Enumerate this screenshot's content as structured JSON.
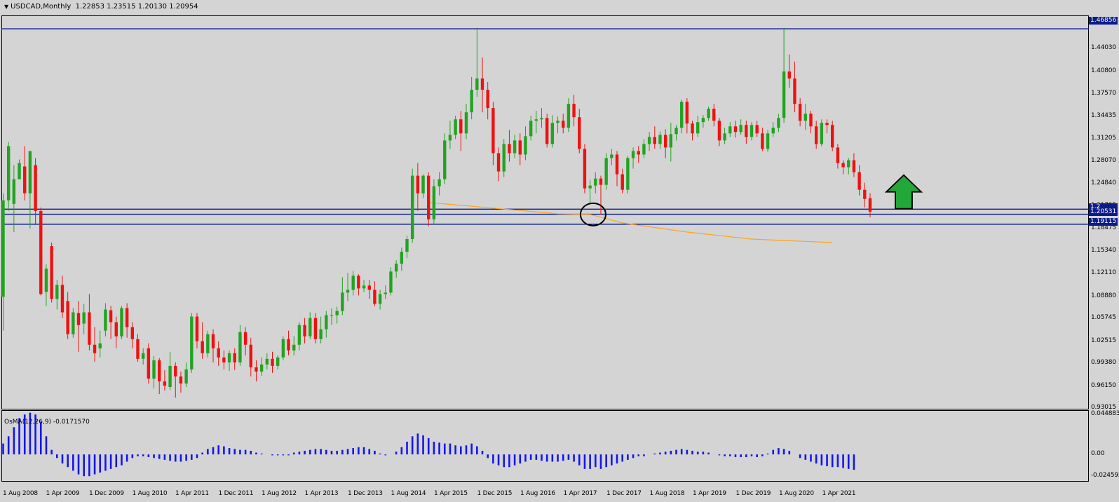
{
  "chart_title": {
    "symbol": "USDCAD,Monthly",
    "ohlc": "1.22853 1.23515 1.20130 1.20954",
    "dropdown_icon": "triangle-down-icon"
  },
  "indicator": {
    "name": "OsMA(12,26,9) -0.0171570"
  },
  "tags": {
    "top": "1.46856",
    "current": "1.20531",
    "support": "1.19115",
    "hidden_prefix": "1.2"
  },
  "colors": {
    "background": "#d4d4d4",
    "bull": "#22a322",
    "bear": "#ee1111",
    "levels": "#0c1b8a",
    "ma": "#f5a623",
    "osma": "#1515f0",
    "arrow": "#22a838"
  },
  "chart_data": {
    "type": "candlestick",
    "instrument": "USDCAD",
    "timeframe": "Monthly",
    "x_ticks": [
      "1 Aug 2008",
      "1 Apr 2009",
      "1 Dec 2009",
      "1 Aug 2010",
      "1 Apr 2011",
      "1 Dec 2011",
      "1 Aug 2012",
      "1 Apr 2013",
      "1 Dec 2013",
      "1 Aug 2014",
      "1 Apr 2015",
      "1 Dec 2015",
      "1 Aug 2016",
      "1 Apr 2017",
      "1 Dec 2017",
      "1 Aug 2018",
      "1 Apr 2019",
      "1 Dec 2019",
      "1 Aug 2020",
      "1 Apr 2021"
    ],
    "y_ticks": [
      "1.44030",
      "1.40800",
      "1.37570",
      "1.34435",
      "1.31205",
      "1.28070",
      "1.24840",
      "1.21705",
      "1.18475",
      "1.15340",
      "1.12110",
      "1.08880",
      "1.05745",
      "1.02515",
      "0.99380",
      "0.96150",
      "0.93015"
    ],
    "y_range": [
      0.93015,
      1.4875
    ],
    "osma_ticks": [
      "0.044883",
      "0.00",
      "-0.024592"
    ],
    "osma_range": [
      -0.0285,
      0.0488
    ],
    "levels": [
      1.46856,
      1.2125,
      1.20531,
      1.19115
    ],
    "annotations": [
      "circle at 1 Jun 2017 low near 1.205",
      "green up arrow near 1.23"
    ],
    "ma_points": [
      [
        2015,
        1.222
      ],
      [
        2016,
        1.214
      ],
      [
        2017,
        1.206
      ],
      [
        2017.5,
        1.205
      ],
      [
        2018,
        1.193
      ],
      [
        2019,
        1.18
      ],
      [
        2020,
        1.17
      ],
      [
        2021.25,
        1.165
      ]
    ],
    "candles": [
      [
        1.088,
        1.225,
        1.04,
        1.235
      ],
      [
        1.225,
        1.302,
        1.21,
        1.308
      ],
      [
        1.22,
        1.255,
        1.18,
        1.275
      ],
      [
        1.255,
        1.278,
        1.255,
        1.283
      ],
      [
        1.273,
        1.235,
        1.225,
        1.302
      ],
      [
        1.235,
        1.295,
        1.185,
        1.29
      ],
      [
        1.275,
        1.21,
        1.19,
        1.285
      ],
      [
        1.21,
        1.092,
        1.09,
        1.215
      ],
      [
        1.095,
        1.128,
        1.075,
        1.134
      ],
      [
        1.16,
        1.085,
        1.08,
        1.165
      ],
      [
        1.085,
        1.105,
        1.07,
        1.112
      ],
      [
        1.105,
        1.066,
        1.058,
        1.118
      ],
      [
        1.082,
        1.035,
        1.028,
        1.095
      ],
      [
        1.035,
        1.066,
        1.03,
        1.072
      ],
      [
        1.065,
        1.048,
        1.01,
        1.082
      ],
      [
        1.05,
        1.066,
        1.035,
        1.078
      ],
      [
        1.066,
        1.02,
        1.012,
        1.092
      ],
      [
        1.02,
        1.008,
        0.996,
        1.045
      ],
      [
        1.015,
        1.022,
        1.002,
        1.04
      ],
      [
        1.04,
        1.07,
        1.032,
        1.079
      ],
      [
        1.069,
        1.052,
        1.028,
        1.075
      ],
      [
        1.052,
        1.032,
        1.015,
        1.06
      ],
      [
        1.032,
        1.072,
        1.028,
        1.075
      ],
      [
        1.072,
        1.045,
        1.03,
        1.079
      ],
      [
        1.045,
        1.028,
        1.015,
        1.052
      ],
      [
        1.028,
        1.0,
        0.996,
        1.035
      ],
      [
        1.0,
        1.008,
        0.992,
        1.015
      ],
      [
        1.015,
        0.972,
        0.965,
        1.022
      ],
      [
        0.972,
        0.998,
        0.958,
        1.004
      ],
      [
        0.998,
        0.968,
        0.95,
        1.001
      ],
      [
        0.968,
        0.962,
        0.955,
        0.984
      ],
      [
        0.96,
        0.99,
        0.956,
        1.01
      ],
      [
        0.99,
        0.975,
        0.945,
        0.995
      ],
      [
        0.975,
        0.965,
        0.952,
        0.982
      ],
      [
        0.965,
        0.985,
        0.96,
        0.995
      ],
      [
        0.985,
        1.06,
        0.98,
        1.065
      ],
      [
        1.06,
        1.025,
        1.015,
        1.065
      ],
      [
        1.025,
        1.008,
        1.0,
        1.052
      ],
      [
        1.008,
        1.035,
        1.002,
        1.04
      ],
      [
        1.035,
        1.015,
        0.995,
        1.042
      ],
      [
        1.015,
        1.002,
        0.99,
        1.025
      ],
      [
        1.002,
        0.995,
        0.985,
        1.012
      ],
      [
        0.995,
        1.008,
        0.983,
        1.012
      ],
      [
        1.008,
        0.995,
        0.984,
        1.015
      ],
      [
        0.995,
        1.038,
        0.99,
        1.048
      ],
      [
        1.038,
        1.02,
        1.005,
        1.045
      ],
      [
        1.02,
        0.988,
        0.975,
        1.03
      ],
      [
        0.988,
        0.982,
        0.968,
        0.998
      ],
      [
        0.982,
        0.992,
        0.976,
        1.002
      ],
      [
        0.992,
        1.0,
        0.985,
        1.008
      ],
      [
        1.0,
        0.99,
        0.98,
        1.01
      ],
      [
        0.99,
        1.002,
        0.985,
        1.005
      ],
      [
        1.002,
        1.028,
        0.998,
        1.032
      ],
      [
        1.028,
        1.012,
        1.005,
        1.04
      ],
      [
        1.012,
        1.02,
        1.005,
        1.032
      ],
      [
        1.02,
        1.048,
        1.012,
        1.052
      ],
      [
        1.048,
        1.032,
        1.022,
        1.058
      ],
      [
        1.032,
        1.058,
        1.028,
        1.066
      ],
      [
        1.058,
        1.028,
        1.022,
        1.065
      ],
      [
        1.028,
        1.042,
        1.022,
        1.06
      ],
      [
        1.042,
        1.062,
        1.03,
        1.068
      ],
      [
        1.062,
        1.062,
        1.048,
        1.072
      ],
      [
        1.062,
        1.068,
        1.05,
        1.074
      ],
      [
        1.068,
        1.094,
        1.062,
        1.116
      ],
      [
        1.094,
        1.098,
        1.082,
        1.122
      ],
      [
        1.098,
        1.118,
        1.09,
        1.125
      ],
      [
        1.118,
        1.1,
        1.09,
        1.12
      ],
      [
        1.1,
        1.104,
        1.095,
        1.112
      ],
      [
        1.104,
        1.098,
        1.085,
        1.112
      ],
      [
        1.098,
        1.078,
        1.075,
        1.11
      ],
      [
        1.078,
        1.092,
        1.07,
        1.098
      ],
      [
        1.092,
        1.094,
        1.085,
        1.104
      ],
      [
        1.094,
        1.124,
        1.09,
        1.13
      ],
      [
        1.124,
        1.135,
        1.115,
        1.14
      ],
      [
        1.135,
        1.152,
        1.125,
        1.158
      ],
      [
        1.152,
        1.17,
        1.143,
        1.175
      ],
      [
        1.17,
        1.26,
        1.165,
        1.27
      ],
      [
        1.26,
        1.235,
        1.21,
        1.278
      ],
      [
        1.235,
        1.26,
        1.228,
        1.262
      ],
      [
        1.26,
        1.198,
        1.188,
        1.265
      ],
      [
        1.198,
        1.245,
        1.19,
        1.255
      ],
      [
        1.245,
        1.255,
        1.232,
        1.265
      ],
      [
        1.255,
        1.31,
        1.248,
        1.32
      ],
      [
        1.31,
        1.318,
        1.298,
        1.338
      ],
      [
        1.318,
        1.34,
        1.312,
        1.345
      ],
      [
        1.34,
        1.32,
        1.295,
        1.352
      ],
      [
        1.32,
        1.35,
        1.312,
        1.362
      ],
      [
        1.35,
        1.382,
        1.34,
        1.4
      ],
      [
        1.382,
        1.398,
        1.372,
        1.47
      ],
      [
        1.398,
        1.382,
        1.35,
        1.428
      ],
      [
        1.382,
        1.356,
        1.34,
        1.393
      ],
      [
        1.356,
        1.292,
        1.275,
        1.365
      ],
      [
        1.292,
        1.266,
        1.252,
        1.3
      ],
      [
        1.266,
        1.305,
        1.258,
        1.312
      ],
      [
        1.305,
        1.292,
        1.28,
        1.325
      ],
      [
        1.292,
        1.31,
        1.285,
        1.318
      ],
      [
        1.31,
        1.29,
        1.275,
        1.32
      ],
      [
        1.29,
        1.316,
        1.282,
        1.33
      ],
      [
        1.316,
        1.338,
        1.31,
        1.345
      ],
      [
        1.338,
        1.34,
        1.32,
        1.352
      ],
      [
        1.34,
        1.342,
        1.328,
        1.356
      ],
      [
        1.342,
        1.305,
        1.3,
        1.348
      ],
      [
        1.305,
        1.335,
        1.3,
        1.346
      ],
      [
        1.335,
        1.338,
        1.32,
        1.344
      ],
      [
        1.338,
        1.328,
        1.32,
        1.348
      ],
      [
        1.328,
        1.362,
        1.322,
        1.37
      ],
      [
        1.362,
        1.343,
        1.33,
        1.375
      ],
      [
        1.343,
        1.298,
        1.292,
        1.355
      ],
      [
        1.298,
        1.242,
        1.235,
        1.305
      ],
      [
        1.242,
        1.246,
        1.222,
        1.254
      ],
      [
        1.246,
        1.256,
        1.235,
        1.265
      ],
      [
        1.256,
        1.247,
        1.205,
        1.26
      ],
      [
        1.247,
        1.285,
        1.24,
        1.292
      ],
      [
        1.285,
        1.29,
        1.275,
        1.298
      ],
      [
        1.29,
        1.262,
        1.245,
        1.295
      ],
      [
        1.262,
        1.24,
        1.235,
        1.27
      ],
      [
        1.24,
        1.285,
        1.235,
        1.288
      ],
      [
        1.285,
        1.295,
        1.27,
        1.3
      ],
      [
        1.295,
        1.29,
        1.278,
        1.302
      ],
      [
        1.29,
        1.305,
        1.285,
        1.312
      ],
      [
        1.305,
        1.315,
        1.295,
        1.322
      ],
      [
        1.315,
        1.305,
        1.298,
        1.33
      ],
      [
        1.305,
        1.318,
        1.298,
        1.323
      ],
      [
        1.318,
        1.3,
        1.285,
        1.326
      ],
      [
        1.3,
        1.319,
        1.28,
        1.335
      ],
      [
        1.319,
        1.328,
        1.31,
        1.332
      ],
      [
        1.328,
        1.365,
        1.32,
        1.368
      ],
      [
        1.365,
        1.334,
        1.32,
        1.37
      ],
      [
        1.334,
        1.32,
        1.31,
        1.338
      ],
      [
        1.32,
        1.336,
        1.315,
        1.345
      ],
      [
        1.336,
        1.342,
        1.328,
        1.346
      ],
      [
        1.342,
        1.355,
        1.338,
        1.358
      ],
      [
        1.355,
        1.338,
        1.33,
        1.362
      ],
      [
        1.338,
        1.31,
        1.302,
        1.342
      ],
      [
        1.31,
        1.32,
        1.305,
        1.328
      ],
      [
        1.32,
        1.33,
        1.315,
        1.336
      ],
      [
        1.33,
        1.322,
        1.314,
        1.338
      ],
      [
        1.322,
        1.332,
        1.318,
        1.34
      ],
      [
        1.332,
        1.315,
        1.305,
        1.338
      ],
      [
        1.315,
        1.332,
        1.31,
        1.336
      ],
      [
        1.332,
        1.32,
        1.315,
        1.338
      ],
      [
        1.32,
        1.298,
        1.295,
        1.328
      ],
      [
        1.298,
        1.32,
        1.294,
        1.325
      ],
      [
        1.32,
        1.328,
        1.315,
        1.336
      ],
      [
        1.328,
        1.342,
        1.322,
        1.348
      ],
      [
        1.342,
        1.408,
        1.335,
        1.47
      ],
      [
        1.408,
        1.398,
        1.385,
        1.432
      ],
      [
        1.398,
        1.362,
        1.35,
        1.422
      ],
      [
        1.362,
        1.338,
        1.33,
        1.37
      ],
      [
        1.338,
        1.348,
        1.325,
        1.362
      ],
      [
        1.348,
        1.33,
        1.32,
        1.352
      ],
      [
        1.33,
        1.305,
        1.298,
        1.338
      ],
      [
        1.305,
        1.335,
        1.302,
        1.34
      ],
      [
        1.335,
        1.332,
        1.32,
        1.34
      ],
      [
        1.332,
        1.3,
        1.295,
        1.338
      ],
      [
        1.3,
        1.278,
        1.27,
        1.305
      ],
      [
        1.278,
        1.272,
        1.262,
        1.282
      ],
      [
        1.272,
        1.282,
        1.262,
        1.285
      ],
      [
        1.282,
        1.265,
        1.258,
        1.292
      ],
      [
        1.265,
        1.24,
        1.232,
        1.275
      ],
      [
        1.24,
        1.227,
        1.215,
        1.25
      ],
      [
        1.228,
        1.209,
        1.201,
        1.235
      ]
    ],
    "osma": [
      0.012,
      0.02,
      0.03,
      0.04,
      0.044,
      0.046,
      0.044,
      0.036,
      0.02,
      0.005,
      -0.004,
      -0.01,
      -0.014,
      -0.018,
      -0.022,
      -0.024,
      -0.024,
      -0.022,
      -0.02,
      -0.018,
      -0.016,
      -0.014,
      -0.012,
      -0.008,
      -0.004,
      -0.002,
      -0.002,
      -0.003,
      -0.004,
      -0.005,
      -0.006,
      -0.007,
      -0.008,
      -0.008,
      -0.007,
      -0.006,
      -0.004,
      0.002,
      0.006,
      0.008,
      0.01,
      0.009,
      0.007,
      0.006,
      0.005,
      0.005,
      0.004,
      0.002,
      0.001,
      0.0,
      -0.001,
      -0.001,
      -0.001,
      -0.001,
      0.002,
      0.003,
      0.004,
      0.005,
      0.006,
      0.006,
      0.005,
      0.004,
      0.004,
      0.005,
      0.006,
      0.007,
      0.008,
      0.008,
      0.006,
      0.004,
      0.001,
      -0.001,
      0.0,
      0.003,
      0.008,
      0.014,
      0.02,
      0.023,
      0.021,
      0.018,
      0.014,
      0.013,
      0.012,
      0.012,
      0.01,
      0.009,
      0.01,
      0.012,
      0.009,
      0.004,
      -0.004,
      -0.01,
      -0.012,
      -0.014,
      -0.014,
      -0.012,
      -0.01,
      -0.008,
      -0.006,
      -0.006,
      -0.007,
      -0.008,
      -0.008,
      -0.008,
      -0.007,
      -0.006,
      -0.008,
      -0.012,
      -0.016,
      -0.016,
      -0.014,
      -0.016,
      -0.014,
      -0.012,
      -0.01,
      -0.008,
      -0.006,
      -0.004,
      -0.002,
      -0.002,
      0.0,
      0.001,
      0.002,
      0.003,
      0.004,
      0.005,
      0.006,
      0.005,
      0.004,
      0.003,
      0.003,
      0.002,
      0.0,
      -0.001,
      -0.002,
      -0.002,
      -0.003,
      -0.003,
      -0.003,
      -0.002,
      -0.003,
      -0.002,
      0.001,
      0.005,
      0.007,
      0.006,
      0.004,
      0.0,
      -0.004,
      -0.006,
      -0.008,
      -0.01,
      -0.012,
      -0.013,
      -0.014,
      -0.014,
      -0.015,
      -0.016,
      -0.017
    ]
  }
}
